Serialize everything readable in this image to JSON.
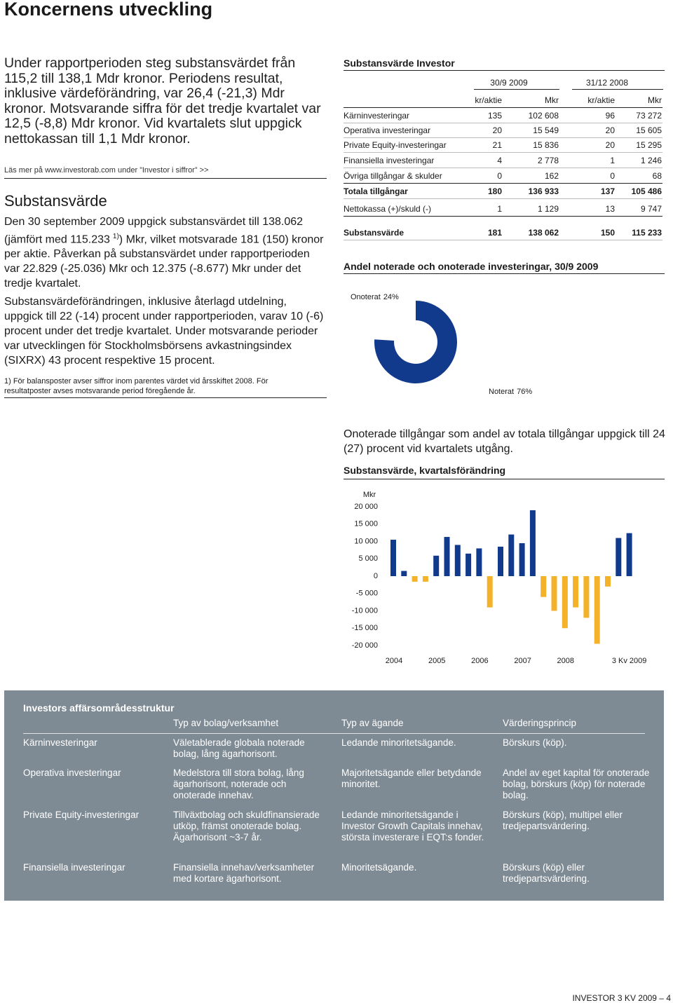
{
  "header": {
    "title": "Koncernens utveckling"
  },
  "intro": {
    "paragraph": "Under rapportperioden steg substansvärdet från 115,2 till 138,1 Mdr kronor. Periodens resultat, inklusive värdeförändring, var 26,4 (-21,3) Mdr kronor. Motsvarande siffra för det tredje kvartalet var 12,5 (-8,8) Mdr kronor. Vid kvartalets slut uppgick nettokassan till 1,1 Mdr kronor.",
    "link": "Läs mer på www.investorab.com under ”Investor i siffror” >>"
  },
  "substansvarde": {
    "heading": "Substansvärde",
    "paragraph1": {
      "before": "Den 30 september 2009 uppgick substansvärdet till 138.062 (jämfört med 115.233",
      "sup": "1)",
      "after": ") Mkr, vilket motsvarade 181 (150) kronor per aktie. Påverkan på substansvärdet under rapportperioden var 22.829 (-25.036) Mkr och 12.375 (-8.677) Mkr under det tredje kvartalet."
    },
    "paragraph2": "Substansvärdeförändringen, inklusive återlagd utdelning, uppgick till 22 (-14) procent under rapportperioden, varav 10 (-6) procent under det tredje kvartalet. Under motsvarande perioder var utvecklingen för Stockholmsbörsens avkastningsindex (SIXRX) 43 procent respektive 15 procent.",
    "footnote": "1) För balansposter avser siffror inom parentes värdet vid årsskiftet 2008. För resultatposter avses motsvarande period föregående år."
  },
  "table": {
    "title": "Substansvärde Investor",
    "groups": [
      "30/9 2009",
      "31/12 2008"
    ],
    "columns": [
      "kr/aktie",
      "Mkr",
      "kr/aktie",
      "Mkr"
    ],
    "rows": [
      [
        "Kärninvesteringar",
        "135",
        "102 608",
        "96",
        "73 272"
      ],
      [
        "Operativa investeringar",
        "20",
        "15 549",
        "20",
        "15 605"
      ],
      [
        "Private Equity-investeringar",
        "21",
        "15 836",
        "20",
        "15 295"
      ],
      [
        "Finansiella investeringar",
        "4",
        "2 778",
        "1",
        "1 246"
      ],
      [
        "Övriga tillgångar & skulder",
        "0",
        "162",
        "0",
        "68"
      ],
      [
        "Totala tillgångar",
        "180",
        "136 933",
        "137",
        "105 486"
      ],
      [
        "Nettokassa (+)/skuld (-)",
        "1",
        "1 129",
        "13",
        "9 747"
      ],
      [
        "Substansvärde",
        "181",
        "138 062",
        "150",
        "115 233"
      ]
    ]
  },
  "pie_text": "Onoterade tillgångar som andel av totala tillgångar uppgick till 24 (27) procent vid kvartalets utgång.",
  "chart_data": [
    {
      "type": "pie",
      "title": "Andel noterade och onoterade investeringar, 30/9 2009",
      "categories": [
        "Onoterat",
        "Noterat"
      ],
      "values": [
        24,
        76
      ],
      "value_labels": [
        "24%",
        "76%"
      ],
      "colors": [
        "#ffffff",
        "#123a8c"
      ]
    },
    {
      "type": "bar",
      "title": "Substansvärde, kvartalsförändring",
      "y_label": "Mkr",
      "categories": [
        "2004",
        null,
        null,
        null,
        "2005",
        null,
        null,
        null,
        "2006",
        null,
        null,
        null,
        "2007",
        null,
        null,
        null,
        "2008",
        null,
        null,
        null,
        null,
        null,
        "3 Kv 2009"
      ],
      "values": [
        10500,
        1500,
        -1600,
        -1600,
        5900,
        11300,
        9000,
        6500,
        8000,
        -9000,
        8500,
        12000,
        9500,
        19000,
        -6000,
        -10000,
        -15000,
        -9000,
        -12000,
        -19500,
        -3000,
        11000,
        12400
      ],
      "color": "#123a8c",
      "negative_color": "#f3b229",
      "ylim": [
        -20000,
        20000
      ],
      "yticks": [
        {
          "value": -20000,
          "label": "-20 000"
        },
        {
          "value": -15000,
          "label": "-15 000"
        },
        {
          "value": -10000,
          "label": "-10 000"
        },
        {
          "value": -5000,
          "label": "-5 000"
        },
        0,
        {
          "value": 5000,
          "label": "5 000"
        },
        {
          "value": 10000,
          "label": "10 000"
        },
        {
          "value": 15000,
          "label": "15 000"
        },
        {
          "value": 20000,
          "label": "20 000"
        }
      ],
      "grid": false
    }
  ],
  "structure": {
    "title": "Investors affärsområdesstruktur",
    "columns": [
      "Typ av bolag/verksamhet",
      "Typ av ägande",
      "Värderingsprincip"
    ],
    "rows": [
      [
        "Kärninvesteringar",
        "Väletablerade globala noterade bolag, lång ägarhorisont.",
        "Ledande minoritetsägande.",
        "Börskurs (köp)."
      ],
      [
        "Operativa investeringar",
        "Medelstora till stora bolag, lång ägarhorisont, noterade och onoterade innehav.",
        "Majoritetsägande eller betydande minoritet.",
        "Andel av eget kapital för onoterade bolag, börskurs (köp) för noterade bolag."
      ],
      [
        "Private Equity-investeringar",
        "Tillväxtbolag och skuldfinansierade utköp, främst onoterade bolag. Ägarhorisont ~3-7 år.",
        "Ledande minoritetsägande i Investor Growth Capitals innehav, största investerare i EQT:s fonder.",
        "Börskurs (köp), multipel eller tredjepartsvärdering."
      ],
      [
        "Finansiella investeringar",
        "Finansiella innehav/verksamheter med kortare ägarhorisont.",
        "Minoritetsägande.",
        "Börskurs (köp) eller tredjepartsvärdering."
      ]
    ]
  },
  "footer": "INVESTOR 3 KV 2009 – 4"
}
